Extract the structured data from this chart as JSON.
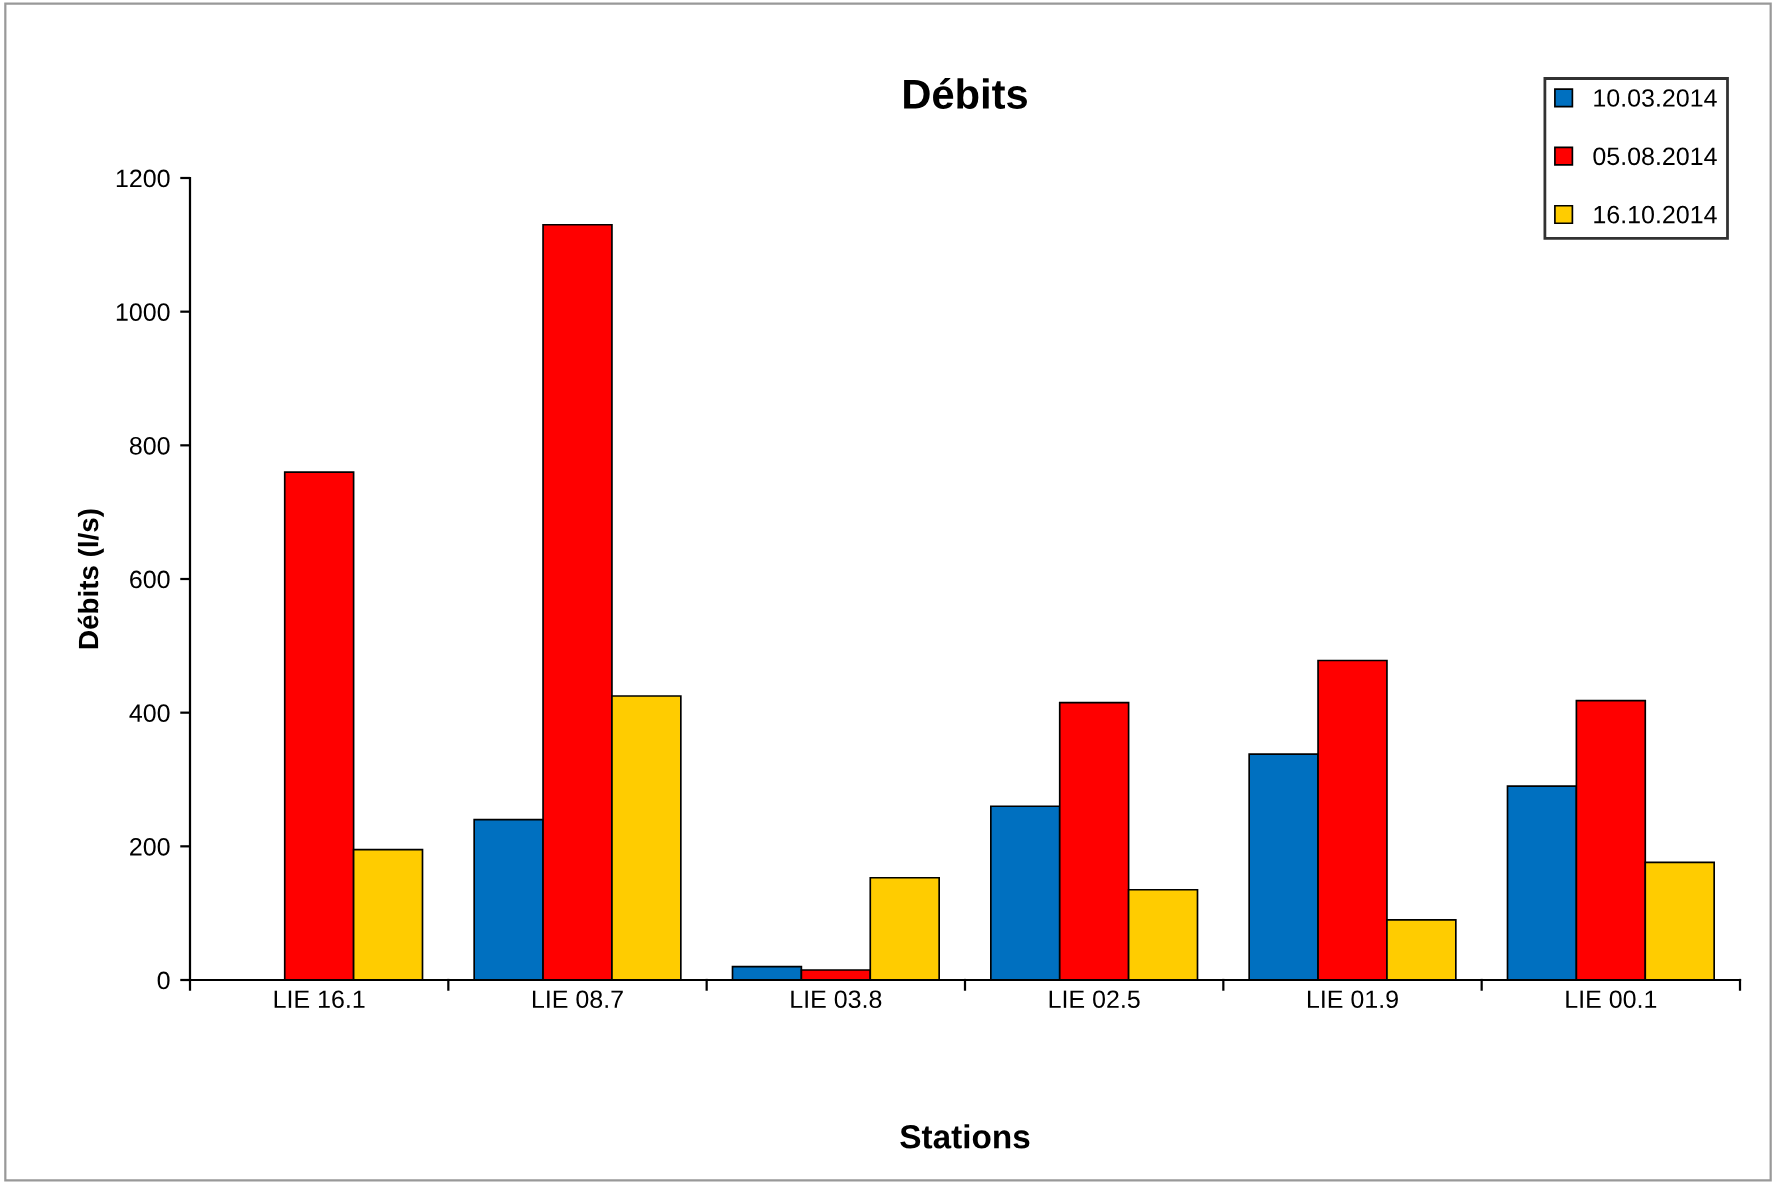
{
  "chart_data": {
    "type": "bar",
    "title": "Débits",
    "xlabel": "Stations",
    "ylabel": "Débits (l/s)",
    "categories": [
      "LIE 16.1",
      "LIE 08.7",
      "LIE 03.8",
      "LIE 02.5",
      "LIE 01.9",
      "LIE 00.1"
    ],
    "series": [
      {
        "name": "10.03.2014",
        "color": "#0070c0",
        "values": [
          null,
          240,
          20,
          260,
          338,
          290
        ]
      },
      {
        "name": "05.08.2014",
        "color": "#ff0000",
        "values": [
          760,
          1130,
          15,
          415,
          478,
          418
        ]
      },
      {
        "name": "16.10.2014",
        "color": "#ffcc00",
        "values": [
          195,
          425,
          153,
          135,
          90,
          176
        ]
      }
    ],
    "ylim": [
      0,
      1200
    ],
    "yticks": [
      0,
      200,
      400,
      600,
      800,
      1000,
      1200
    ],
    "grid": false,
    "legend": "top right"
  }
}
